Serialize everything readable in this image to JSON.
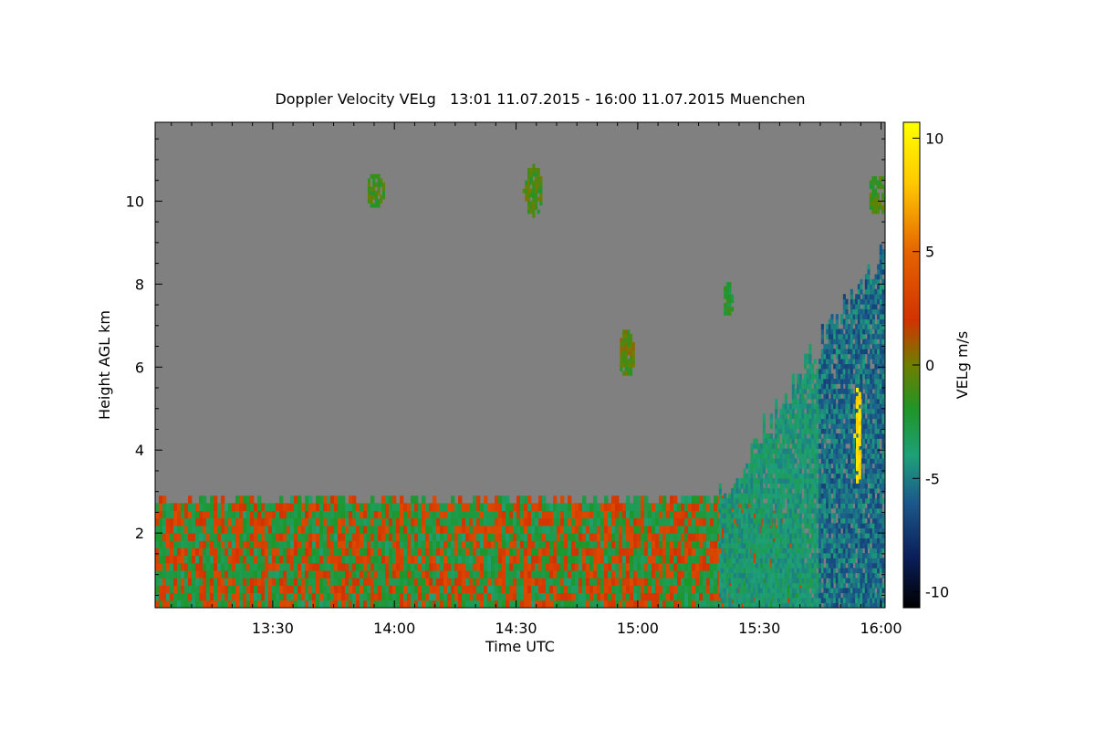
{
  "chart_data": {
    "type": "heatmap",
    "title": "Doppler Velocity VELg   13:01 11.07.2015 - 16:00 11.07.2015 Muenchen",
    "xlabel": "Time UTC",
    "ylabel": "Height AGL km",
    "colorbar_label": "VELg m/s",
    "x_range_minutes": [
      781,
      961
    ],
    "x_ticks": [
      {
        "minute": 810,
        "label": "13:30"
      },
      {
        "minute": 840,
        "label": "14:00"
      },
      {
        "minute": 870,
        "label": "14:30"
      },
      {
        "minute": 900,
        "label": "15:00"
      },
      {
        "minute": 930,
        "label": "15:30"
      },
      {
        "minute": 960,
        "label": "16:00"
      }
    ],
    "y_range_km": [
      0.2,
      11.9
    ],
    "y_ticks": [
      {
        "value": 2,
        "label": "2"
      },
      {
        "value": 4,
        "label": "4"
      },
      {
        "value": 6,
        "label": "6"
      },
      {
        "value": 8,
        "label": "8"
      },
      {
        "value": 10,
        "label": "10"
      }
    ],
    "colorbar_range": [
      -10.7,
      10.7
    ],
    "colorbar_ticks": [
      {
        "value": 10,
        "label": "10"
      },
      {
        "value": 5,
        "label": "5"
      },
      {
        "value": 0,
        "label": "0"
      },
      {
        "value": -5,
        "label": "-5"
      },
      {
        "value": -10,
        "label": "-10"
      }
    ],
    "colorscale": [
      {
        "value": -10.7,
        "color": "#000000"
      },
      {
        "value": -8.5,
        "color": "#0a1e5a"
      },
      {
        "value": -6,
        "color": "#1c5a8c"
      },
      {
        "value": -4,
        "color": "#1ea078"
      },
      {
        "value": -2,
        "color": "#1e9628"
      },
      {
        "value": 0,
        "color": "#6e7f00"
      },
      {
        "value": 2,
        "color": "#d23200"
      },
      {
        "value": 5,
        "color": "#e66400"
      },
      {
        "value": 8,
        "color": "#ffc800"
      },
      {
        "value": 10.7,
        "color": "#ffff00"
      }
    ],
    "no_data_color": "#808080",
    "regions": [
      {
        "name": "boundary-layer",
        "t_start": 781,
        "t_end": 940,
        "h_bottom": 0.2,
        "h_top": 2.85,
        "mean_velocity": 0
      },
      {
        "name": "cirrus-1393",
        "t_center": 835,
        "h_center": 10.2,
        "mean_velocity": -1
      },
      {
        "name": "cirrus-1442",
        "t_center": 874,
        "h_center": 10.2,
        "mean_velocity": -1
      },
      {
        "name": "cloud-1457",
        "t_center": 897,
        "h_center": 6.3,
        "mean_velocity": -0.5
      },
      {
        "name": "cloud-1522",
        "t_center": 922,
        "h_center": 7.6,
        "mean_velocity": -2
      },
      {
        "name": "cirrus-1557",
        "t_center": 959,
        "h_center": 10.1,
        "mean_velocity": -1
      },
      {
        "name": "convective-cloud",
        "t_start": 920,
        "t_end": 961,
        "h_bottom": 0.2,
        "h_top": 9.0,
        "mean_velocity": -6
      },
      {
        "name": "updraft-core",
        "t_center": 954,
        "h_center": 4.3,
        "mean_velocity": 9
      }
    ]
  }
}
